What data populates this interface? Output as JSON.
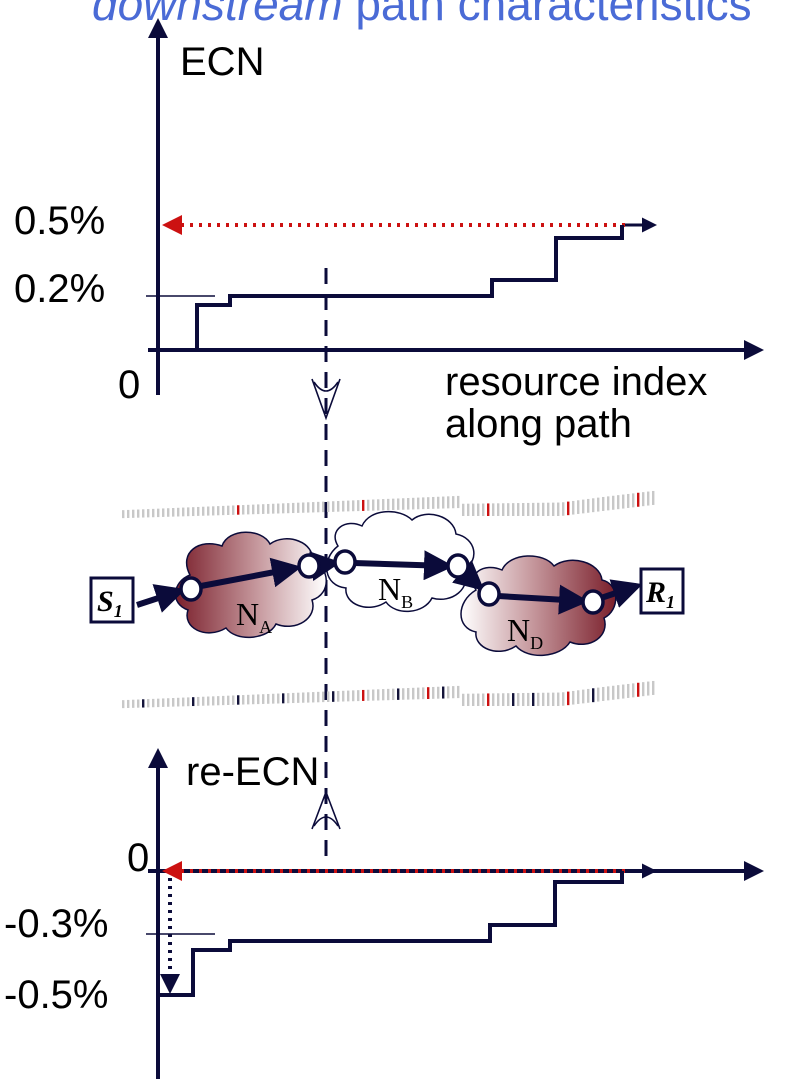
{
  "header": {
    "title_italic": "downstream",
    "title_rest": " path characteristics"
  },
  "top_chart": {
    "y_axis_label": "ECN",
    "y_tick_high": "0.5%",
    "y_tick_mid": "0.2%",
    "origin_label": "0",
    "x_axis_label_line1": "resource index",
    "x_axis_label_line2": "along path"
  },
  "network": {
    "sender": "S",
    "sender_sub": "1",
    "receiver": "R",
    "receiver_sub": "1",
    "cloud_a": "N",
    "cloud_a_sub": "A",
    "cloud_b": "N",
    "cloud_b_sub": "B",
    "cloud_d": "N",
    "cloud_d_sub": "D"
  },
  "bottom_chart": {
    "y_axis_label": "re-ECN",
    "origin_label": "0",
    "y_tick_mid": "-0.3%",
    "y_tick_low": "-0.5%"
  },
  "chart_data": [
    {
      "type": "line",
      "title": "",
      "ylabel": "ECN",
      "xlabel": "resource index along path",
      "step": true,
      "series": [
        {
          "x": [
            0,
            1,
            2,
            3,
            4,
            5
          ],
          "y": [
            0,
            0.1,
            0.2,
            0.2,
            0.3,
            0.5
          ]
        }
      ],
      "annotations": [
        "0.5%",
        "0.2%"
      ]
    },
    {
      "type": "line",
      "title": "",
      "ylabel": "re-ECN",
      "step": true,
      "series": [
        {
          "x": [
            0,
            1,
            2,
            3,
            4,
            5
          ],
          "y": [
            -0.5,
            -0.4,
            -0.3,
            -0.3,
            -0.2,
            0
          ]
        }
      ],
      "annotations": [
        "0",
        "-0.3%",
        "-0.5%"
      ]
    }
  ],
  "colors": {
    "title_blue": "#4a6bd6",
    "axis_navy": "#0b0b3a",
    "dotted_red": "#cc1111",
    "cloud_dark": "#7a1f2b",
    "cloud_light": "#ffffff",
    "packet_grey": "#c8c8c8"
  }
}
